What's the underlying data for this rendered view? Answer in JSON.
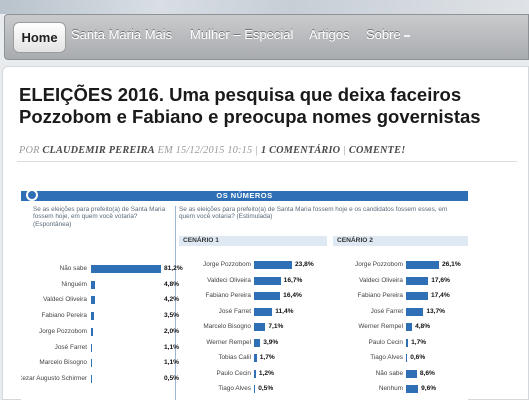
{
  "nav": {
    "items": [
      {
        "label": "Home",
        "active": true
      },
      {
        "label": "Santa Maria Mais"
      },
      {
        "label": "Mulher – Especial"
      },
      {
        "label": "Artigos"
      },
      {
        "label": "Sobre",
        "has_submenu": true
      }
    ]
  },
  "post": {
    "title": "ELEIÇÕES 2016. Uma pesquisa que deixa faceiros Pozzobom e Fabiano e preocupa nomes governistas",
    "meta": {
      "by": "POR",
      "author": "CLAUDEMIR PEREIRA",
      "date_prefix": "EM 15/12/2015 10:15",
      "sep": "|",
      "comments": "1 COMENTÁRIO",
      "comment_link": "COMENTE!"
    }
  },
  "infographic": {
    "heading": "OS NÚMEROS",
    "question_spontaneous": "Se as eleições para prefeito(a) de Santa Maria fossem hoje, em quem você votaria? (Espontânea)",
    "question_stimulated": "Se as eleições para prefeito(a) de Santa Maria fossem hoje e os candidatos fossem esses, em quem você votaria? (Estimulada)",
    "colors": {
      "bar": "#2e6fb5",
      "band": "#2e6fb5"
    }
  },
  "chart_data": [
    {
      "type": "bar",
      "orientation": "horizontal",
      "categories": [
        "Não sabe",
        "Ninguém",
        "Valdeci Oliveira",
        "Fabiano Pereira",
        "Jorge Pozzobom",
        "José Farret",
        "Marcelo Bisogno",
        "Cezar Augusto Schirmer"
      ],
      "values": [
        81.2,
        4.8,
        4.2,
        3.5,
        2.0,
        1.1,
        1.1,
        0.5
      ],
      "labels": [
        "81,2%",
        "4,8%",
        "4,2%",
        "3,5%",
        "2,0%",
        "1,1%",
        "1,1%",
        "0,5%"
      ],
      "xlim": [
        0,
        81.2
      ]
    },
    {
      "type": "bar",
      "orientation": "horizontal",
      "title": "CENÁRIO 1",
      "categories": [
        "Jorge Pozzobom",
        "Valdeci Oliveira",
        "Fabiano Pereira",
        "José Farret",
        "Marcelo Bisogno",
        "Werner Rempel",
        "Tobias Calil",
        "Paulo Cecin",
        "Tiago Alves"
      ],
      "values": [
        23.8,
        16.7,
        16.4,
        11.4,
        7.1,
        3.9,
        1.7,
        1.2,
        0.5
      ],
      "labels": [
        "23,8%",
        "16,7%",
        "16,4%",
        "11,4%",
        "7,1%",
        "3,9%",
        "1,7%",
        "1,2%",
        "0,5%"
      ],
      "xlim": [
        0,
        23.8
      ]
    },
    {
      "type": "bar",
      "orientation": "horizontal",
      "title": "CENÁRIO 2",
      "categories": [
        "Jorge Pozzobom",
        "Valdeci Oliveira",
        "Fabiano Pereira",
        "José Farret",
        "Werner Rempel",
        "Paulo Cecin",
        "Tiago Alves",
        "Não sabe",
        "Nenhum"
      ],
      "values": [
        26.1,
        17.6,
        17.4,
        13.7,
        4.8,
        1.7,
        0.6,
        8.6,
        9.6
      ],
      "labels": [
        "26,1%",
        "17,6%",
        "17,4%",
        "13,7%",
        "4,8%",
        "1,7%",
        "0,6%",
        "8,6%",
        "9,6%"
      ],
      "xlim": [
        0,
        26.1
      ]
    }
  ]
}
